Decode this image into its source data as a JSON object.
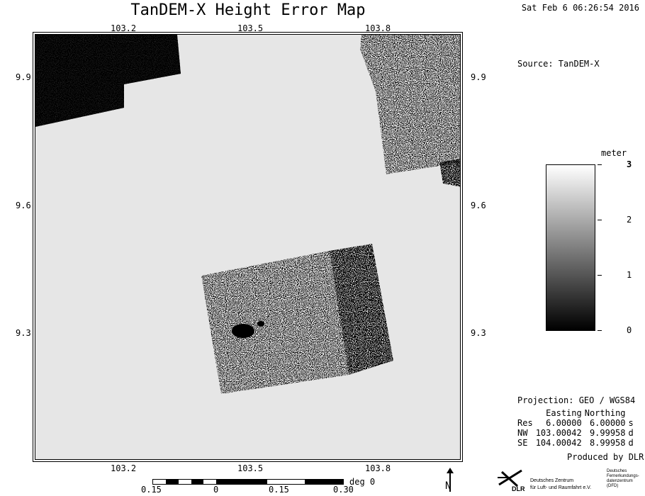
{
  "title": "TanDEM-X Height Error Map",
  "timestamp": "Sat Feb  6 06:26:54 2016",
  "source": "Source: TanDEM-X",
  "map": {
    "x_ticks": [
      "103.2",
      "103.5",
      "103.8"
    ],
    "y_ticks": [
      "9.9",
      "9.6",
      "9.3"
    ],
    "background_color": "#e6e6e6"
  },
  "colorbar": {
    "unit": "meter",
    "min": 0,
    "max": 3,
    "tick_labels": [
      "3",
      "2",
      "1",
      "0"
    ],
    "gradient": [
      "#000000",
      "#ffffff"
    ]
  },
  "projection": "Projection: GEO / WGS84",
  "table": {
    "headers": [
      "",
      "Easting",
      "Northing",
      ""
    ],
    "rows": [
      {
        "label": "Res",
        "easting": "6.00000",
        "northing": "6.00000",
        "unit": "s"
      },
      {
        "label": "NW",
        "easting": "103.00042",
        "northing": "9.99958",
        "unit": "d"
      },
      {
        "label": "SE",
        "easting": "104.00042",
        "northing": "8.99958",
        "unit": "d"
      }
    ]
  },
  "produced_by": "Produced by DLR",
  "scale": {
    "labels": [
      "0.15",
      "0",
      "0.15",
      "0.30"
    ],
    "unit": "deg 0"
  },
  "north_label": "N",
  "logo": {
    "name": "DLR",
    "line1": "Deutsches Zentrum",
    "line2": "für Luft- und Raumfahrt e.V.",
    "right1": "Deutsches",
    "right2": "Fernerkundungs-",
    "right3": "datenzentrum",
    "right4": "(DFD)"
  }
}
